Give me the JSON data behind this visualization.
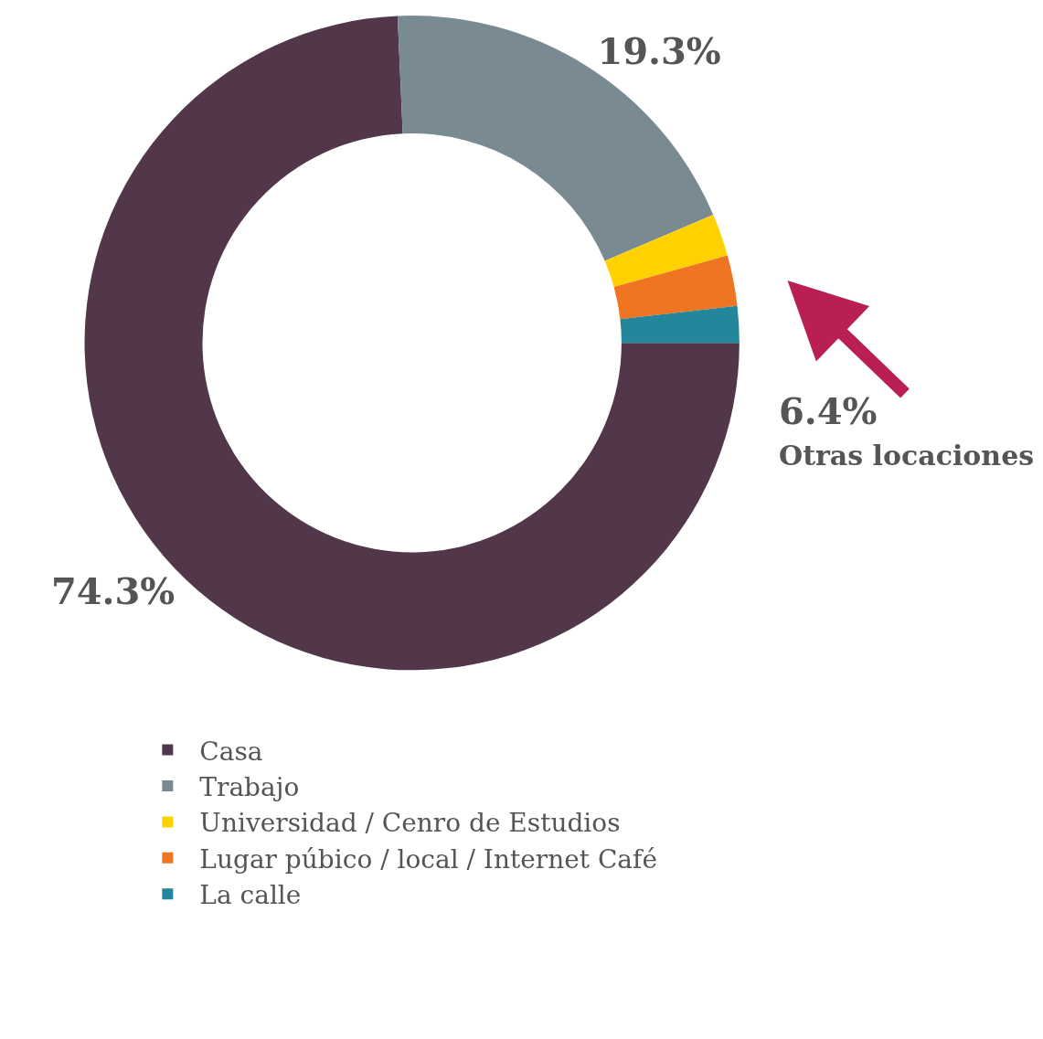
{
  "chart_data": {
    "type": "donut",
    "categories": [
      "Casa",
      "Trabajo",
      "Universidad / Cenro de Estudios",
      "Lugar púbico / local / Internet Café",
      "La calle"
    ],
    "values": [
      74.3,
      19.3,
      2.1,
      2.5,
      1.8
    ],
    "colors": [
      "#52374a",
      "#7a8a93",
      "#ffd100",
      "#f07522",
      "#23869a"
    ],
    "value_labels": [
      "74.3%",
      "19.3%",
      null,
      null,
      null
    ],
    "annotations": [
      "6.4%",
      "Otras locaciones"
    ],
    "legend": "bottom"
  }
}
